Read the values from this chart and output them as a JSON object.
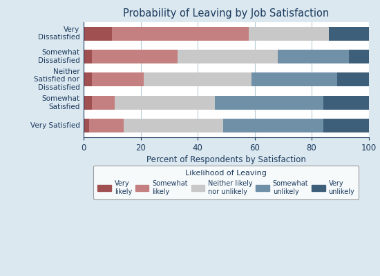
{
  "title": "Probability of Leaving by Job Satisfaction",
  "xlabel": "Percent of Respondents by Satisfaction",
  "categories": [
    "Very Satisfied",
    "Somewhat\nSatisfied",
    "Neither\nSatisfied nor\nDissatisfied",
    "Somewhat\nDissatisfied",
    "Very\nDissatisfied"
  ],
  "legend_title": "Likelihood of Leaving",
  "legend_labels": [
    "Very\nlikely",
    "Somewhat\nlikely",
    "Neither likely\nnor unlikely",
    "Somewhat\nunlikely",
    "Very\nunlikely"
  ],
  "colors": [
    "#a05050",
    "#c48080",
    "#c8c8c8",
    "#7090a8",
    "#3d5f7a"
  ],
  "data": [
    [
      2,
      12,
      35,
      35,
      16
    ],
    [
      3,
      8,
      35,
      38,
      16
    ],
    [
      3,
      18,
      38,
      30,
      11
    ],
    [
      3,
      30,
      35,
      25,
      7
    ],
    [
      10,
      48,
      28,
      0,
      14
    ]
  ],
  "xlim": [
    0,
    100
  ],
  "xticks": [
    0,
    20,
    40,
    60,
    80,
    100
  ],
  "background_color": "#dce8f0",
  "plot_background": "#ffffff",
  "title_color": "#1a3a5c",
  "label_color": "#1a3a5c",
  "legend_title_color": "#1a3a5c",
  "tick_color": "#1a3a5c",
  "bar_height": 0.6,
  "grid_color": "#b8cdd8",
  "figsize": [
    5.5,
    4.0
  ],
  "dpi": 100
}
